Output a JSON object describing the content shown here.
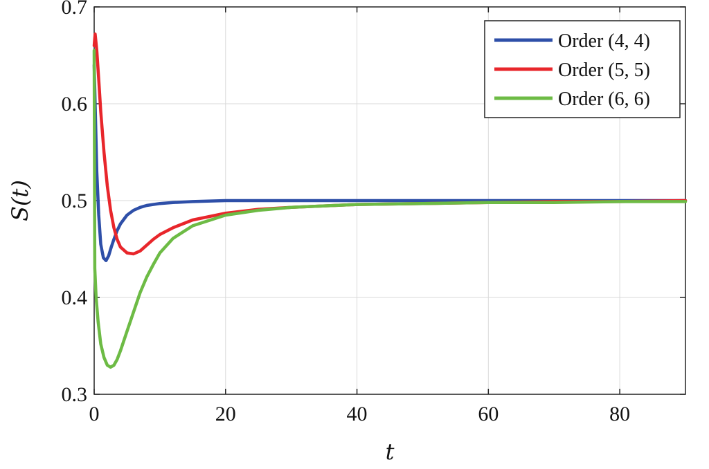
{
  "chart_data": {
    "type": "line",
    "title": "",
    "xlabel": "t",
    "ylabel": "S(t)",
    "xlim": [
      0,
      90
    ],
    "ylim": [
      0.3,
      0.7
    ],
    "xticks": [
      0,
      20,
      40,
      60,
      80
    ],
    "yticks": [
      0.3,
      0.4,
      0.5,
      0.6,
      0.7
    ],
    "xtick_labels": [
      "0",
      "20",
      "40",
      "60",
      "80"
    ],
    "ytick_labels": [
      "0.3",
      "0.4",
      "0.5",
      "0.6",
      "0.7"
    ],
    "grid": true,
    "legend_position": "top-right",
    "series": [
      {
        "name": "Order (4, 4)",
        "color": "#2e4fa8",
        "x": [
          0,
          0.15,
          0.4,
          0.7,
          1.0,
          1.4,
          1.8,
          2.2,
          2.6,
          3.0,
          3.5,
          4.0,
          5.0,
          6.0,
          7.0,
          8.0,
          10.0,
          12.0,
          15.0,
          20.0,
          25.0,
          30.0,
          40.0,
          50.0,
          60.0,
          70.0,
          80.0,
          90.0
        ],
        "y": [
          0.64,
          0.6,
          0.53,
          0.485,
          0.455,
          0.441,
          0.438,
          0.443,
          0.452,
          0.46,
          0.469,
          0.476,
          0.485,
          0.49,
          0.493,
          0.495,
          0.497,
          0.498,
          0.499,
          0.5,
          0.5,
          0.5,
          0.5,
          0.5,
          0.5,
          0.5,
          0.5,
          0.5
        ]
      },
      {
        "name": "Order (5, 5)",
        "color": "#e8262b",
        "x": [
          0,
          0.15,
          0.4,
          0.7,
          1.0,
          1.5,
          2.0,
          2.5,
          3.0,
          3.5,
          4.0,
          5.0,
          6.0,
          7.0,
          8.0,
          9.0,
          10.0,
          12.0,
          15.0,
          20.0,
          25.0,
          30.0,
          40.0,
          50.0,
          60.0,
          70.0,
          80.0,
          90.0
        ],
        "y": [
          0.66,
          0.672,
          0.655,
          0.625,
          0.592,
          0.55,
          0.515,
          0.49,
          0.472,
          0.46,
          0.452,
          0.446,
          0.445,
          0.448,
          0.454,
          0.46,
          0.465,
          0.472,
          0.48,
          0.487,
          0.491,
          0.493,
          0.496,
          0.497,
          0.498,
          0.499,
          0.499,
          0.5
        ]
      },
      {
        "name": "Order (6, 6)",
        "color": "#6dbb45",
        "x": [
          0,
          0.1,
          0.3,
          0.6,
          1.0,
          1.5,
          2.0,
          2.5,
          3.0,
          3.5,
          4.0,
          5.0,
          6.0,
          7.0,
          8.0,
          9.0,
          10.0,
          12.0,
          15.0,
          20.0,
          25.0,
          30.0,
          40.0,
          50.0,
          60.0,
          70.0,
          80.0,
          90.0
        ],
        "y": [
          0.655,
          0.43,
          0.4,
          0.375,
          0.352,
          0.338,
          0.33,
          0.328,
          0.33,
          0.336,
          0.345,
          0.365,
          0.385,
          0.405,
          0.421,
          0.434,
          0.446,
          0.461,
          0.474,
          0.485,
          0.49,
          0.493,
          0.496,
          0.497,
          0.498,
          0.498,
          0.499,
          0.499
        ]
      }
    ]
  }
}
